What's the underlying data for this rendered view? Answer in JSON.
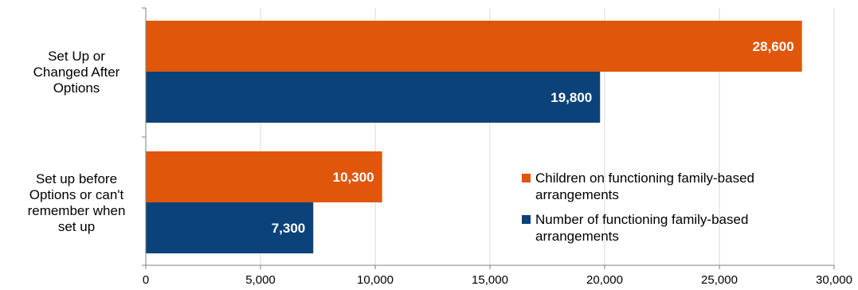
{
  "chart_data": {
    "type": "bar",
    "orientation": "horizontal",
    "categories": [
      [
        "Set Up or",
        "Changed After",
        "Options"
      ],
      [
        "Set up before",
        "Options or can't",
        "remember when",
        "set up"
      ]
    ],
    "series": [
      {
        "name": [
          "Children on functioning family-based",
          "arrangements"
        ],
        "values": [
          28600,
          10300
        ],
        "labels": [
          "28,600",
          "10,300"
        ],
        "color": "#E0560A"
      },
      {
        "name": [
          "Number of functioning family-based",
          "arrangements"
        ],
        "values": [
          19800,
          7300
        ],
        "labels": [
          "19,800",
          "7,300"
        ],
        "color": "#0B4279"
      }
    ],
    "xlim": [
      0,
      30000
    ],
    "xticks": [
      0,
      5000,
      10000,
      15000,
      20000,
      25000,
      30000
    ],
    "xtick_labels": [
      "0",
      "5,000",
      "10,000",
      "15,000",
      "20,000",
      "25,000",
      "30,000"
    ],
    "grid": "vertical",
    "legend_position": "lower-right"
  }
}
